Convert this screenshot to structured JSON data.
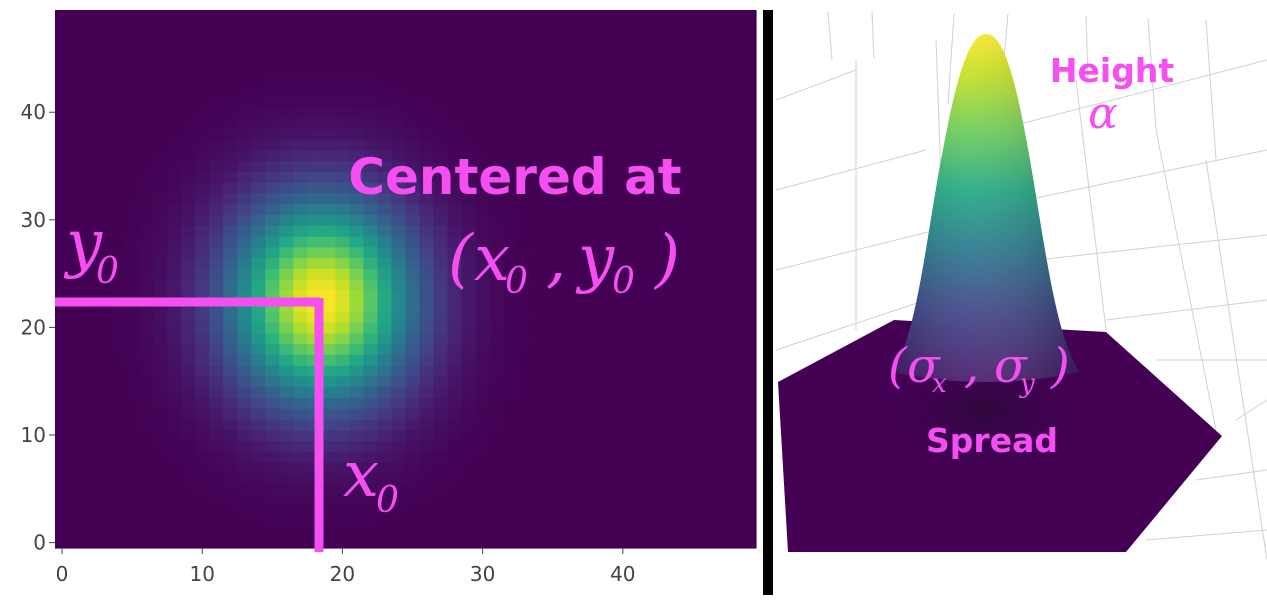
{
  "colors": {
    "annotation": "#f54ff2",
    "background": "#440154",
    "divider": "#000000",
    "axis_text": "#444444"
  },
  "chart_data": [
    {
      "type": "heatmap",
      "title": "",
      "xlabel": "",
      "ylabel": "",
      "xlim": [
        -0.5,
        49.5
      ],
      "ylim": [
        -0.5,
        49.5
      ],
      "x_ticks": [
        "0",
        "10",
        "20",
        "30",
        "40"
      ],
      "y_ticks": [
        "0",
        "10",
        "20",
        "30",
        "40"
      ],
      "grid": [
        50,
        50
      ],
      "colorscale": "viridis",
      "gaussian": {
        "x0": 18.5,
        "y0": 22.5,
        "sigma_x": 4.5,
        "sigma_y": 6.5,
        "alpha": 1.0
      },
      "annotations": {
        "centered_title": "Centered at",
        "center_expr_open": "(",
        "center_x": "x",
        "center_sub": "0",
        "center_comma": ",",
        "center_y": "y",
        "center_close": ")",
        "y0_main": "y",
        "y0_sub": "0",
        "x0_main": "x",
        "x0_sub": "0"
      }
    },
    {
      "type": "surface",
      "title": "",
      "colorscale": "viridis",
      "annotations": {
        "height_label": "Height",
        "alpha_symbol": "α",
        "spread_label": "Spread",
        "spread_open": "(",
        "sigma": "σ",
        "sub_x": "x",
        "spread_comma": ",",
        "sub_y": "y",
        "spread_close": ")"
      }
    }
  ]
}
